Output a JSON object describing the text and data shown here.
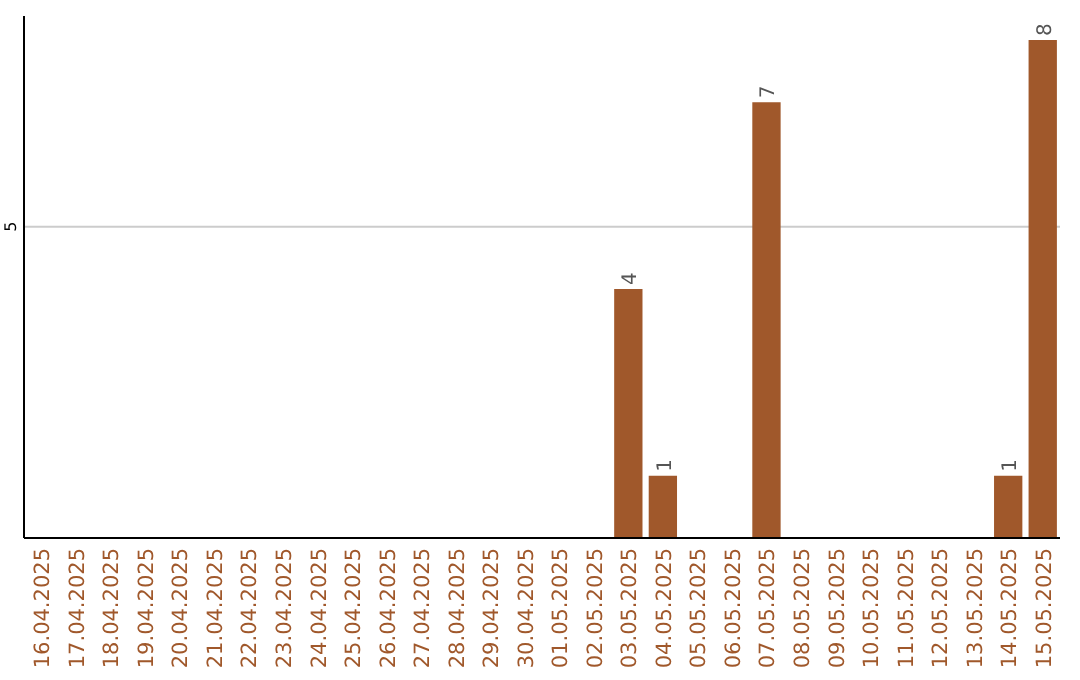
{
  "chart_data": {
    "type": "bar",
    "categories": [
      "16.04.2025",
      "17.04.2025",
      "18.04.2025",
      "19.04.2025",
      "20.04.2025",
      "21.04.2025",
      "22.04.2025",
      "23.04.2025",
      "24.04.2025",
      "25.04.2025",
      "26.04.2025",
      "27.04.2025",
      "28.04.2025",
      "29.04.2025",
      "30.04.2025",
      "01.05.2025",
      "02.05.2025",
      "03.05.2025",
      "04.05.2025",
      "05.05.2025",
      "06.05.2025",
      "07.05.2025",
      "08.05.2025",
      "09.05.2025",
      "10.05.2025",
      "11.05.2025",
      "12.05.2025",
      "13.05.2025",
      "14.05.2025",
      "15.05.2025"
    ],
    "values": [
      null,
      null,
      null,
      null,
      null,
      null,
      null,
      null,
      null,
      null,
      null,
      null,
      null,
      null,
      null,
      null,
      null,
      4,
      1,
      null,
      null,
      7,
      null,
      null,
      null,
      null,
      null,
      null,
      1,
      8
    ],
    "data_labels": true,
    "color": "#a0582b",
    "ylim": [
      0,
      8
    ],
    "yticks": [
      {
        "value": 0,
        "label": null
      },
      5
    ],
    "grid": "y"
  }
}
